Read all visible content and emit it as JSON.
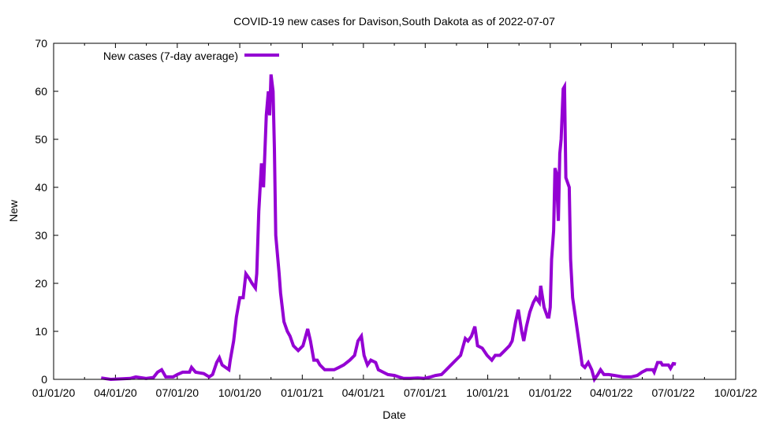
{
  "chart_data": {
    "type": "line",
    "title": "COVID-19 new cases for Davison,South Dakota as of 2022-07-07",
    "xlabel": "Date",
    "ylabel": "New",
    "x_units": "days since 2020-01-01",
    "xlim": [
      0,
      1004
    ],
    "ylim": [
      0,
      70
    ],
    "yticks": [
      0,
      10,
      20,
      30,
      40,
      50,
      60,
      70
    ],
    "xticks": [
      {
        "day": 0,
        "label": "01/01/20"
      },
      {
        "day": 91,
        "label": "04/01/20"
      },
      {
        "day": 182,
        "label": "07/01/20"
      },
      {
        "day": 274,
        "label": "10/01/20"
      },
      {
        "day": 366,
        "label": "01/01/21"
      },
      {
        "day": 456,
        "label": "04/01/21"
      },
      {
        "day": 547,
        "label": "07/01/21"
      },
      {
        "day": 639,
        "label": "10/01/21"
      },
      {
        "day": 731,
        "label": "01/01/22"
      },
      {
        "day": 821,
        "label": "04/01/22"
      },
      {
        "day": 912,
        "label": "07/01/22"
      },
      {
        "day": 1004,
        "label": "10/01/22"
      }
    ],
    "grid": false,
    "legend": {
      "position": "top-left",
      "entries": [
        "New cases (7-day average)"
      ]
    },
    "series": [
      {
        "name": "New cases (7-day average)",
        "color": "#9400d3",
        "x": [
          70,
          84,
          113,
          121,
          136,
          147,
          153,
          159,
          165,
          176,
          182,
          190,
          200,
          203,
          209,
          221,
          229,
          234,
          240,
          244,
          248,
          253,
          258,
          260,
          265,
          269,
          274,
          279,
          283,
          288,
          292,
          297,
          299,
          302,
          306,
          309,
          313,
          316,
          318,
          320,
          323,
          325,
          327,
          332,
          334,
          339,
          344,
          348,
          353,
          360,
          367,
          374,
          378,
          383,
          388,
          392,
          399,
          406,
          413,
          420,
          427,
          436,
          443,
          448,
          453,
          457,
          462,
          467,
          474,
          478,
          485,
          492,
          502,
          508,
          515,
          525,
          536,
          545,
          555,
          562,
          571,
          578,
          585,
          592,
          599,
          606,
          610,
          615,
          620,
          624,
          631,
          638,
          645,
          650,
          657,
          664,
          671,
          675,
          680,
          684,
          689,
          692,
          696,
          701,
          706,
          710,
          715,
          717,
          722,
          727,
          729,
          731,
          733,
          736,
          738,
          740,
          743,
          745,
          747,
          750,
          752,
          754,
          759,
          761,
          764,
          768,
          773,
          778,
          782,
          787,
          792,
          796,
          801,
          805,
          810,
          817,
          826,
          838,
          850,
          859,
          866,
          873,
          882,
          884,
          889,
          894,
          896,
          905,
          908,
          912,
          916
        ],
        "y": [
          0.3,
          0,
          0.2,
          0.5,
          0.2,
          0.4,
          1.5,
          2,
          0.5,
          0.5,
          1,
          1.5,
          1.5,
          2.5,
          1.5,
          1.2,
          0.5,
          1,
          3.5,
          4.5,
          3,
          2.5,
          2,
          4,
          8,
          13,
          17,
          17,
          22,
          21,
          20,
          19,
          22,
          35,
          45,
          40,
          55,
          60,
          55,
          63.5,
          60,
          48,
          30,
          22,
          18,
          12,
          10,
          9,
          7,
          6,
          7,
          10.5,
          8,
          4,
          4,
          3,
          2,
          2,
          2,
          2.5,
          3,
          4,
          5,
          8,
          9,
          5,
          3,
          4,
          3.5,
          2,
          1.5,
          1,
          0.8,
          0.5,
          0.2,
          0.2,
          0.3,
          0.2,
          0.5,
          0.8,
          1,
          2,
          3,
          4,
          5,
          8.5,
          8,
          9,
          11,
          7,
          6.5,
          5,
          4,
          5,
          5,
          6,
          7,
          8,
          12,
          14.5,
          10,
          8,
          11,
          14,
          16,
          17,
          16,
          19.5,
          15,
          13,
          13,
          15,
          25,
          31,
          44,
          43,
          33,
          47,
          50,
          60.5,
          61,
          42,
          40,
          25,
          17,
          13,
          8,
          3,
          2.5,
          3.5,
          2,
          0,
          1,
          2,
          1,
          1,
          0.8,
          0.5,
          0.5,
          0.8,
          1.5,
          2,
          2,
          1.5,
          3.5,
          3.5,
          3,
          3,
          2.3,
          3.3,
          3.2
        ]
      }
    ]
  }
}
